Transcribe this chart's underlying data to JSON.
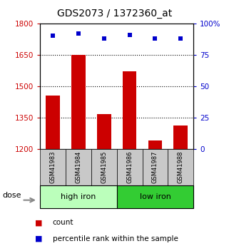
{
  "title": "GDS2073 / 1372360_at",
  "categories": [
    "GSM41983",
    "GSM41984",
    "GSM41985",
    "GSM41986",
    "GSM41987",
    "GSM41988"
  ],
  "bar_values": [
    1455,
    1648,
    1365,
    1570,
    1240,
    1310
  ],
  "dot_values": [
    90,
    92,
    88,
    91,
    88,
    88
  ],
  "ylim_left": [
    1200,
    1800
  ],
  "ylim_right": [
    0,
    100
  ],
  "yticks_left": [
    1200,
    1350,
    1500,
    1650,
    1800
  ],
  "ytick_labels_left": [
    "1200",
    "1350",
    "1500",
    "1650",
    "1800"
  ],
  "yticks_right": [
    0,
    25,
    50,
    75,
    100
  ],
  "ytick_labels_right": [
    "0",
    "25",
    "50",
    "75",
    "100%"
  ],
  "bar_color": "#cc0000",
  "dot_color": "#0000cc",
  "bar_width": 0.55,
  "group_high_label": "high iron",
  "group_high_color": "#bbffbb",
  "group_low_label": "low iron",
  "group_low_color": "#33cc33",
  "dose_label": "dose",
  "legend_count_label": "count",
  "legend_pct_label": "percentile rank within the sample",
  "grid_ticks": [
    1350,
    1500,
    1650
  ],
  "background_color": "#ffffff",
  "left_axis_color": "#cc0000",
  "right_axis_color": "#0000cc",
  "sample_box_color": "#c8c8c8"
}
